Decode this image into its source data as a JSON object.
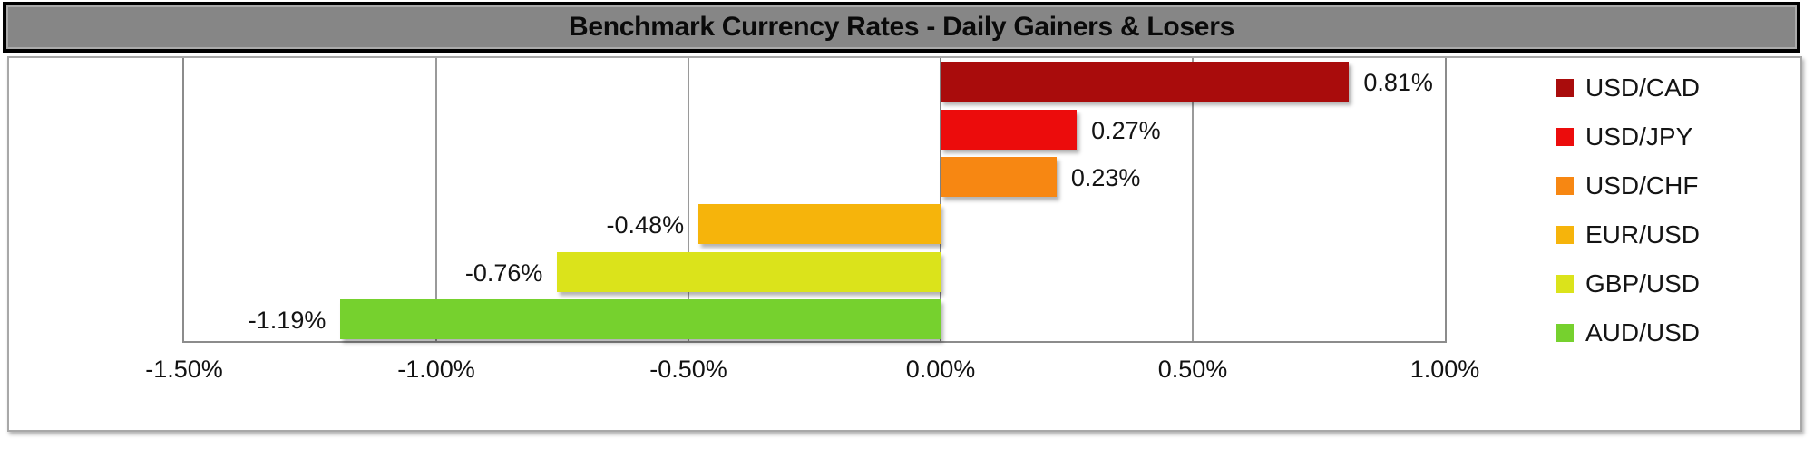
{
  "title": "Benchmark Currency Rates - Daily Gainers & Losers",
  "chart_data": {
    "type": "bar",
    "orientation": "horizontal",
    "title": "Benchmark Currency Rates - Daily Gainers & Losers",
    "categories": [
      "USD/CAD",
      "USD/JPY",
      "USD/CHF",
      "EUR/USD",
      "GBP/USD",
      "AUD/USD"
    ],
    "values": [
      0.81,
      0.27,
      0.23,
      -0.48,
      -0.76,
      -1.19
    ],
    "value_labels": [
      "0.81%",
      "0.27%",
      "0.23%",
      "-0.48%",
      "-0.76%",
      "-1.19%"
    ],
    "bar_colors": [
      "#a90c0c",
      "#ec0c0c",
      "#f78712",
      "#f6b40b",
      "#dbe31b",
      "#76d12e"
    ],
    "xlim": [
      -1.5,
      1.0
    ],
    "x_ticks": [
      -1.5,
      -1.0,
      -0.5,
      0.0,
      0.5,
      1.0
    ],
    "x_tick_labels": [
      "-1.50%",
      "-1.00%",
      "-0.50%",
      "0.00%",
      "0.50%",
      "1.00%"
    ],
    "grid": true,
    "legend_position": "right",
    "legend_entries": [
      "USD/CAD",
      "USD/JPY",
      "USD/CHF",
      "EUR/USD",
      "GBP/USD",
      "AUD/USD"
    ]
  },
  "style": {
    "title_bg": "#868686",
    "title_border": "#000000",
    "grid_color": "#9a9a9a",
    "text_color": "#141414"
  }
}
